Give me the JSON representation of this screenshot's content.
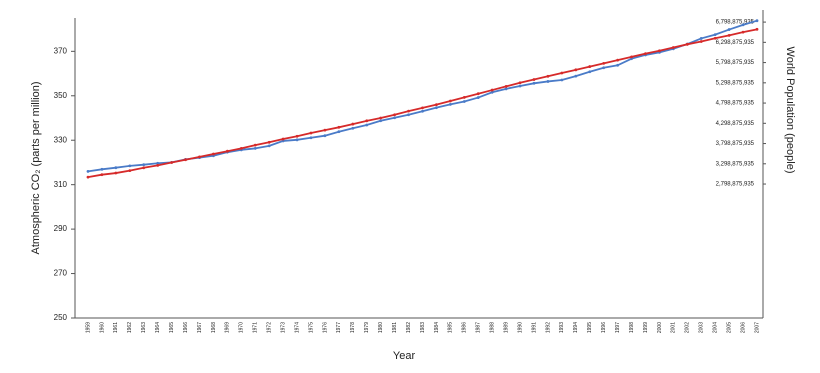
{
  "chart_data": {
    "type": "line",
    "x_label": "Year",
    "y_label": "Atmospheric CO₂ (parts per million)",
    "y2_label": "World Population (people)",
    "categories": [
      "1959",
      "1960",
      "1961",
      "1962",
      "1963",
      "1964",
      "1965",
      "1966",
      "1967",
      "1968",
      "1969",
      "1970",
      "1971",
      "1972",
      "1973",
      "1974",
      "1975",
      "1976",
      "1977",
      "1978",
      "1979",
      "1980",
      "1981",
      "1982",
      "1983",
      "1984",
      "1985",
      "1986",
      "1987",
      "1988",
      "1989",
      "1990",
      "1991",
      "1992",
      "1993",
      "1994",
      "1995",
      "1996",
      "1997",
      "1998",
      "1999",
      "2000",
      "2001",
      "2002",
      "2003",
      "2004",
      "2005",
      "2006",
      "2007"
    ],
    "series": [
      {
        "color": "#4a7bc8",
        "values": [
          315.97,
          316.91,
          317.64,
          318.45,
          318.99,
          319.62,
          320.04,
          321.38,
          322.16,
          323.04,
          324.62,
          325.68,
          326.32,
          327.45,
          329.68,
          330.18,
          331.11,
          332.04,
          333.83,
          335.4,
          336.84,
          338.75,
          340.11,
          341.45,
          343.05,
          344.65,
          346.12,
          347.42,
          349.19,
          351.57,
          353.12,
          354.39,
          355.61,
          356.45,
          357.1,
          358.83,
          360.82,
          362.61,
          363.73,
          366.7,
          368.38,
          369.55,
          371.14,
          373.28,
          375.8,
          377.52,
          379.8,
          381.9,
          383.79
        ]
      },
      {
        "color": "#d62a2a",
        "axis": "y2",
        "values": [
          2970000000,
          3030000000,
          3070000000,
          3130000000,
          3200000000,
          3260000000,
          3330000000,
          3400000000,
          3470000000,
          3540000000,
          3610000000,
          3680000000,
          3760000000,
          3830000000,
          3910000000,
          3980000000,
          4060000000,
          4130000000,
          4200000000,
          4280000000,
          4360000000,
          4430000000,
          4510000000,
          4600000000,
          4680000000,
          4760000000,
          4850000000,
          4940000000,
          5030000000,
          5120000000,
          5210000000,
          5300000000,
          5380000000,
          5460000000,
          5540000000,
          5620000000,
          5700000000,
          5780000000,
          5860000000,
          5940000000,
          6020000000,
          6090000000,
          6170000000,
          6250000000,
          6320000000,
          6400000000,
          6470000000,
          6550000000,
          6620000000
        ]
      }
    ],
    "ylim": [
      250,
      385
    ],
    "yticks": [
      250,
      270,
      290,
      310,
      330,
      350,
      370
    ],
    "y2lim": [
      -510000000,
      6900000000
    ],
    "y2ticks": [
      {
        "value": 2798875935,
        "label": "2,798,875,935"
      },
      {
        "value": 3298875935,
        "label": "3,298,875,935"
      },
      {
        "value": 3798875935,
        "label": "3,798,875,935"
      },
      {
        "value": 4298875935,
        "label": "4,298,875,935"
      },
      {
        "value": 4798875935,
        "label": "4,798,875,935"
      },
      {
        "value": 5298875935,
        "label": "5,298,875,935"
      },
      {
        "value": 5798875935,
        "label": "5,798,875,935"
      },
      {
        "value": 6298875935,
        "label": "6,298,875,935"
      },
      {
        "value": 6798875935,
        "label": "6,798,875,935"
      }
    ],
    "grid": false
  }
}
